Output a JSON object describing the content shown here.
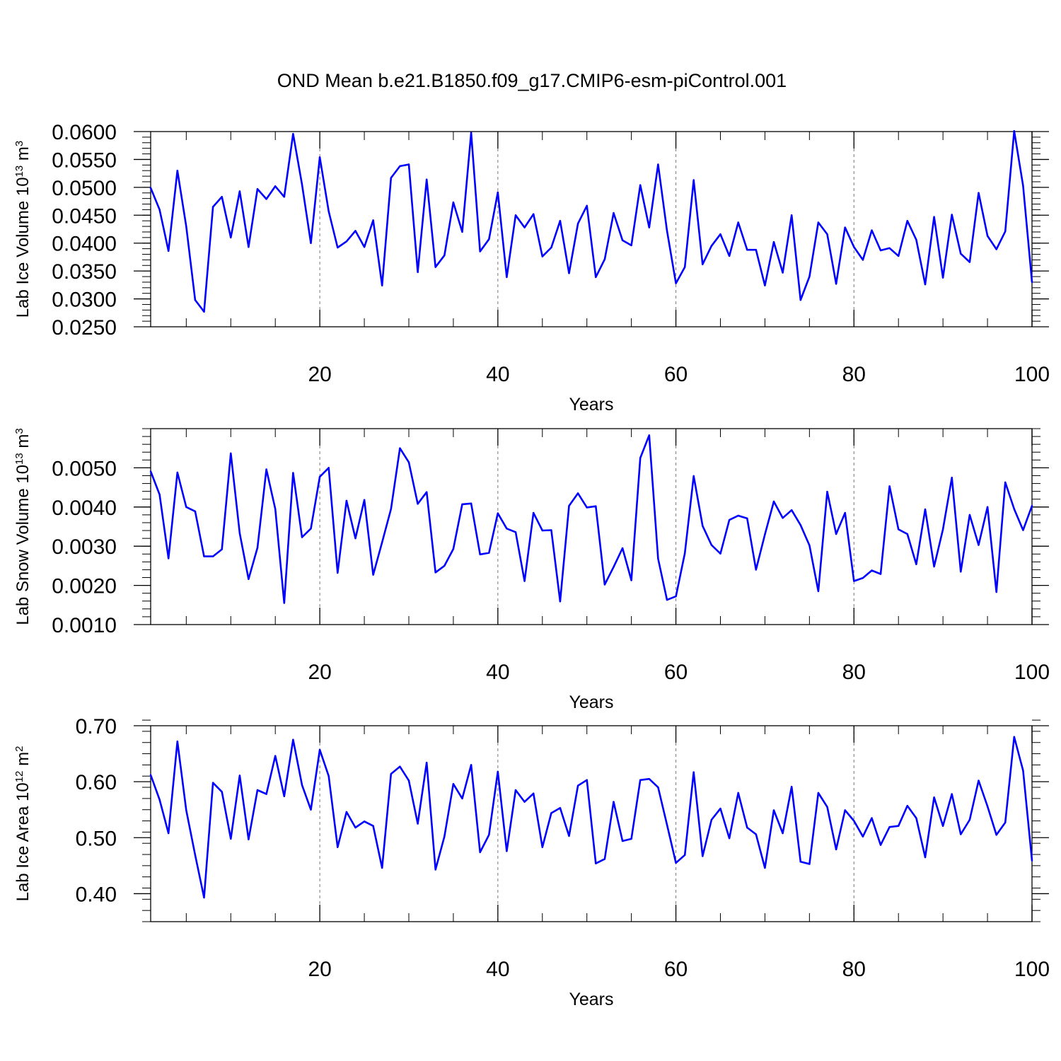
{
  "title": "OND Mean b.e21.B1850.f09_g17.CMIP6-esm-piControl.001",
  "line_color": "#0000ff",
  "chart_data": [
    {
      "type": "line",
      "ylabel_main": "Lab Ice Volume 10",
      "ylabel_exp": "13",
      "ylabel_unit": " m",
      "ylabel_unit_exp": "3",
      "xlabel": "Years",
      "xlim": [
        1,
        100
      ],
      "ylim": [
        0.025,
        0.06
      ],
      "xticks": [
        20,
        40,
        60,
        80,
        100
      ],
      "yticks": [
        0.025,
        0.03,
        0.035,
        0.04,
        0.045,
        0.05,
        0.055,
        0.06
      ],
      "ytick_labels": [
        "0.0250",
        "0.0300",
        "0.0350",
        "0.0400",
        "0.0450",
        "0.0500",
        "0.0550",
        "0.0600"
      ],
      "yminor_step": 0.001,
      "values": [
        0.0499,
        0.046,
        0.0386,
        0.053,
        0.043,
        0.0298,
        0.0277,
        0.0465,
        0.0483,
        0.041,
        0.0493,
        0.0393,
        0.0497,
        0.0479,
        0.0502,
        0.0483,
        0.0596,
        0.0505,
        0.04,
        0.0554,
        0.0457,
        0.0392,
        0.0403,
        0.0422,
        0.0393,
        0.0441,
        0.0324,
        0.0517,
        0.0538,
        0.0541,
        0.0348,
        0.0514,
        0.0357,
        0.0378,
        0.0473,
        0.042,
        0.0598,
        0.0385,
        0.0407,
        0.0491,
        0.0339,
        0.045,
        0.0428,
        0.0452,
        0.0376,
        0.0392,
        0.044,
        0.0346,
        0.0435,
        0.0467,
        0.0339,
        0.0371,
        0.0454,
        0.0405,
        0.0396,
        0.0504,
        0.0428,
        0.0541,
        0.0422,
        0.0328,
        0.0357,
        0.0513,
        0.0362,
        0.0395,
        0.0416,
        0.0377,
        0.0437,
        0.0388,
        0.0388,
        0.0324,
        0.0402,
        0.0347,
        0.045,
        0.0298,
        0.034,
        0.0437,
        0.0416,
        0.0327,
        0.0428,
        0.0393,
        0.037,
        0.0423,
        0.0387,
        0.0391,
        0.0377,
        0.044,
        0.0406,
        0.0326,
        0.0447,
        0.0338,
        0.0451,
        0.0381,
        0.0366,
        0.049,
        0.0413,
        0.0389,
        0.0421,
        0.0601,
        0.0503,
        0.033
      ]
    },
    {
      "type": "line",
      "ylabel_main": "Lab Snow Volume 10",
      "ylabel_exp": "13",
      "ylabel_unit": " m",
      "ylabel_unit_exp": "3",
      "xlabel": "Years",
      "xlim": [
        1,
        100
      ],
      "ylim": [
        0.001,
        0.006
      ],
      "xticks": [
        20,
        40,
        60,
        80,
        100
      ],
      "yticks": [
        0.001,
        0.002,
        0.003,
        0.004,
        0.005
      ],
      "ytick_labels": [
        "0.0010",
        "0.0020",
        "0.0030",
        "0.0040",
        "0.0050"
      ],
      "yminor_step": 0.0002,
      "values": [
        0.00491,
        0.00432,
        0.00269,
        0.00488,
        0.004,
        0.00389,
        0.00274,
        0.00274,
        0.00292,
        0.00537,
        0.00333,
        0.00216,
        0.00296,
        0.00496,
        0.00395,
        0.00155,
        0.00487,
        0.00323,
        0.00345,
        0.00477,
        0.005,
        0.00232,
        0.00416,
        0.0032,
        0.00418,
        0.00227,
        0.0031,
        0.00395,
        0.0055,
        0.00514,
        0.00408,
        0.00438,
        0.00233,
        0.0025,
        0.00293,
        0.00407,
        0.00409,
        0.00279,
        0.00283,
        0.00384,
        0.00345,
        0.00336,
        0.00211,
        0.00385,
        0.0034,
        0.00341,
        0.00159,
        0.00403,
        0.00435,
        0.00399,
        0.00402,
        0.00202,
        0.00247,
        0.00295,
        0.00213,
        0.00525,
        0.00583,
        0.00268,
        0.00163,
        0.00172,
        0.00282,
        0.00479,
        0.00352,
        0.00303,
        0.00281,
        0.00367,
        0.00378,
        0.00371,
        0.0024,
        0.0033,
        0.00414,
        0.00372,
        0.00392,
        0.00354,
        0.00302,
        0.00185,
        0.00439,
        0.00331,
        0.00385,
        0.00211,
        0.00219,
        0.00238,
        0.00229,
        0.00453,
        0.00343,
        0.00331,
        0.00254,
        0.00394,
        0.00248,
        0.00343,
        0.00475,
        0.00235,
        0.0038,
        0.00303,
        0.004,
        0.00183,
        0.00463,
        0.00395,
        0.00341,
        0.00403
      ]
    },
    {
      "type": "line",
      "ylabel_main": "Lab Ice Area 10",
      "ylabel_exp": "12",
      "ylabel_unit": " m",
      "ylabel_unit_exp": "2",
      "xlabel": "Years",
      "xlim": [
        1,
        100
      ],
      "ylim": [
        0.35,
        0.7
      ],
      "xticks": [
        20,
        40,
        60,
        80,
        100
      ],
      "yticks": [
        0.4,
        0.5,
        0.6,
        0.7
      ],
      "ytick_labels": [
        "0.40",
        "0.50",
        "0.60",
        "0.70"
      ],
      "yminor_step": 0.02,
      "values": [
        0.612,
        0.568,
        0.508,
        0.672,
        0.549,
        0.469,
        0.393,
        0.598,
        0.582,
        0.498,
        0.611,
        0.497,
        0.585,
        0.578,
        0.646,
        0.574,
        0.675,
        0.594,
        0.55,
        0.657,
        0.61,
        0.483,
        0.546,
        0.518,
        0.529,
        0.521,
        0.446,
        0.614,
        0.627,
        0.602,
        0.525,
        0.634,
        0.443,
        0.502,
        0.596,
        0.57,
        0.63,
        0.474,
        0.505,
        0.618,
        0.476,
        0.585,
        0.564,
        0.579,
        0.483,
        0.544,
        0.553,
        0.503,
        0.593,
        0.603,
        0.454,
        0.462,
        0.564,
        0.494,
        0.498,
        0.603,
        0.605,
        0.59,
        0.523,
        0.455,
        0.469,
        0.617,
        0.467,
        0.532,
        0.552,
        0.499,
        0.58,
        0.518,
        0.506,
        0.446,
        0.549,
        0.508,
        0.591,
        0.457,
        0.453,
        0.58,
        0.555,
        0.479,
        0.549,
        0.53,
        0.502,
        0.535,
        0.487,
        0.519,
        0.521,
        0.557,
        0.535,
        0.465,
        0.572,
        0.521,
        0.578,
        0.506,
        0.532,
        0.602,
        0.556,
        0.505,
        0.527,
        0.68,
        0.62,
        0.459
      ]
    }
  ]
}
